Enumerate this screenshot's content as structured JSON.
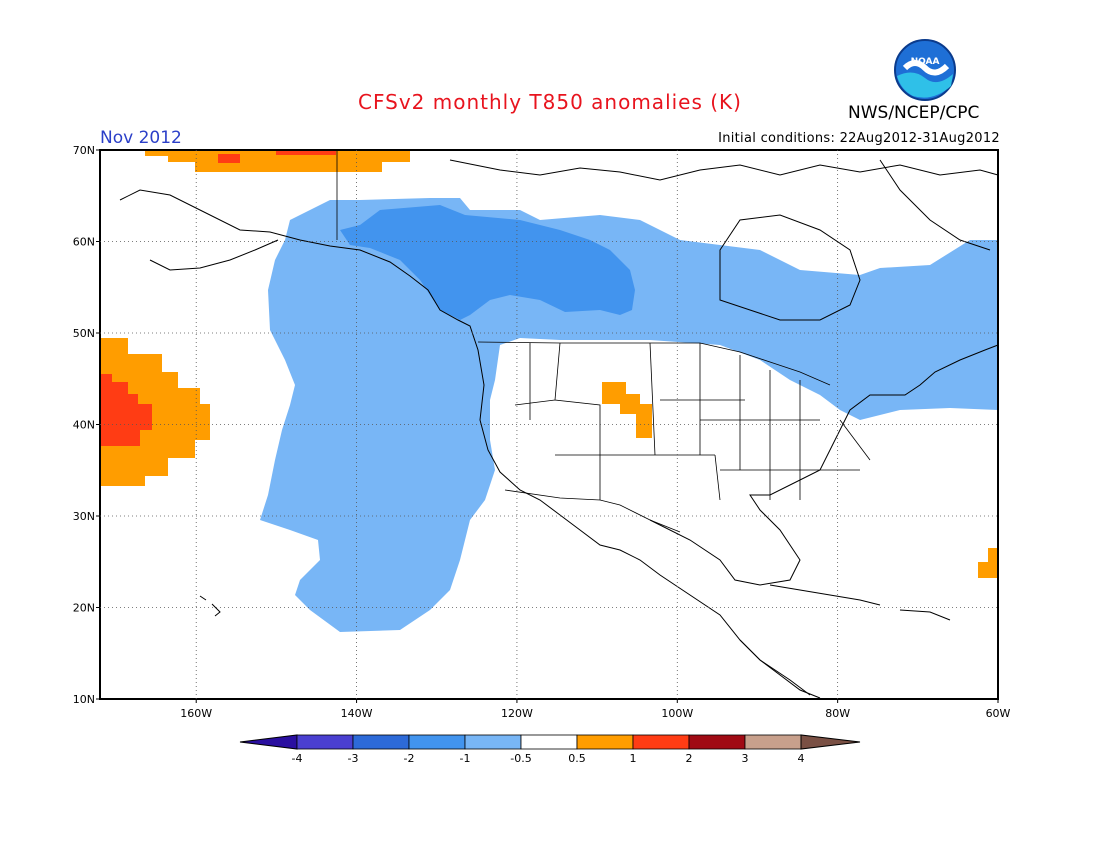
{
  "title": "CFSv2 monthly T850 anomalies (K)",
  "month_label": "Nov 2012",
  "organization": "NWS/NCEP/CPC",
  "logo_text": "NOAA",
  "initial_conditions": "Initial conditions: 22Aug2012-31Aug2012",
  "map": {
    "lon_range": [
      -172,
      -60
    ],
    "lat_range": [
      10,
      70
    ],
    "lat_ticks": [
      "10N",
      "20N",
      "30N",
      "40N",
      "50N",
      "60N",
      "70N"
    ],
    "lon_ticks": [
      "160W",
      "140W",
      "120W",
      "100W",
      "80W",
      "60W"
    ],
    "grid_lon": [
      -160,
      -140,
      -120,
      -100,
      -80
    ],
    "grid_lat": [
      20,
      30,
      40,
      50,
      60
    ]
  },
  "colorbar": {
    "labels": [
      "-4",
      "-3",
      "-2",
      "-1",
      "-0.5",
      "0.5",
      "1",
      "2",
      "3",
      "4"
    ],
    "colors": [
      "#2a0fa0",
      "#4a3fd0",
      "#2d6ad8",
      "#4294ee",
      "#78b6f6",
      "#ffffff",
      "#ff9d00",
      "#ff3c14",
      "#a00a14",
      "#c8a08c",
      "#7a5044"
    ]
  },
  "anomaly_regions": [
    {
      "category": "-1",
      "color": "#4294ee",
      "description": "northwest Canada / Alaska"
    },
    {
      "category": "-0.5",
      "color": "#78b6f6",
      "description": "northeast Pacific and Canada"
    },
    {
      "category": "0.5",
      "color": "#ff9d00",
      "description": "central Pacific warm anomaly"
    },
    {
      "category": "1",
      "color": "#ff3c14",
      "description": "central Pacific core"
    }
  ]
}
